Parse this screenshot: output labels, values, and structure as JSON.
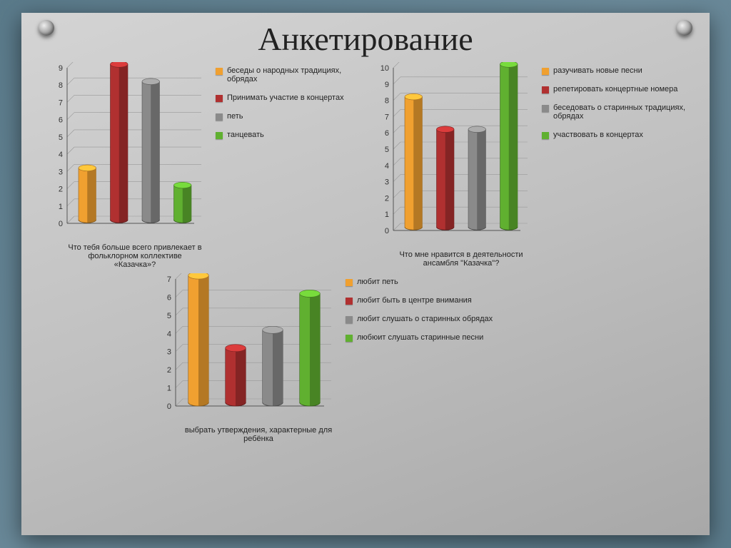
{
  "title": "Анкетирование",
  "colors": {
    "orange": "#f0a030",
    "red": "#b03030",
    "gray": "#8a8a8a",
    "green": "#60b030",
    "grid": "#999999",
    "axis": "#555555",
    "text": "#222222"
  },
  "chart1": {
    "type": "bar3d",
    "ymax": 9,
    "ytick_step": 1,
    "values": [
      3,
      9,
      8,
      2
    ],
    "bar_colors": [
      "#f0a030",
      "#b03030",
      "#8a8a8a",
      "#60b030"
    ],
    "xlabel": "Что тебя больше всего привлекает в фольклорном коллективе «Казачка»?",
    "legend": [
      {
        "color": "#f0a030",
        "label": "беседы о народных традициях, обрядах"
      },
      {
        "color": "#b03030",
        "label": "Принимать участие в концертах"
      },
      {
        "color": "#8a8a8a",
        "label": "петь"
      },
      {
        "color": "#60b030",
        "label": "танцевать"
      }
    ]
  },
  "chart2": {
    "type": "bar3d",
    "ymax": 10,
    "ytick_step": 1,
    "values": [
      8,
      6,
      6,
      10
    ],
    "bar_colors": [
      "#f0a030",
      "#b03030",
      "#8a8a8a",
      "#60b030"
    ],
    "xlabel": "Что мне нравится в деятельности ансамбля \"Казачка\"?",
    "legend": [
      {
        "color": "#f0a030",
        "label": "разучивать новые песни"
      },
      {
        "color": "#b03030",
        "label": "репетировать концертные номера"
      },
      {
        "color": "#8a8a8a",
        "label": "беседовать о старинных традициях, обрядах"
      },
      {
        "color": "#60b030",
        "label": "участвовать в концертах"
      }
    ]
  },
  "chart3": {
    "type": "bar3d",
    "ymax": 7,
    "ytick_step": 1,
    "values": [
      7,
      3,
      4,
      6
    ],
    "bar_colors": [
      "#f0a030",
      "#b03030",
      "#8a8a8a",
      "#60b030"
    ],
    "xlabel": "выбрать утверждения, характерные для ребёнка",
    "legend": [
      {
        "color": "#f0a030",
        "label": "любит петь"
      },
      {
        "color": "#b03030",
        "label": "любит быть в центре внимания"
      },
      {
        "color": "#8a8a8a",
        "label": "любит слушать о старинных обрядах"
      },
      {
        "color": "#60b030",
        "label": "любюит слушать старинные песни"
      }
    ]
  }
}
